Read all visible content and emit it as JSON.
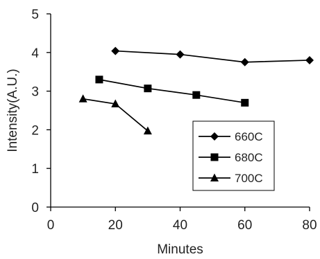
{
  "chart_data": {
    "type": "line",
    "title": "",
    "xlabel": "Minutes",
    "ylabel": "Intensity(A.U.)",
    "xlim": [
      0,
      80
    ],
    "ylim": [
      0,
      5
    ],
    "xticks": [
      "0",
      "20",
      "40",
      "60",
      "80"
    ],
    "yticks": [
      "0",
      "1",
      "2",
      "3",
      "4",
      "5"
    ],
    "grid": false,
    "legend_position": "bottom-right",
    "series": [
      {
        "name": "660C",
        "marker": "diamond",
        "color": "#000000",
        "x": [
          20,
          40,
          60,
          80
        ],
        "y": [
          4.04,
          3.95,
          3.75,
          3.8
        ]
      },
      {
        "name": "680C",
        "marker": "square",
        "color": "#000000",
        "x": [
          15,
          30,
          45,
          60
        ],
        "y": [
          3.3,
          3.07,
          2.9,
          2.7
        ]
      },
      {
        "name": "700C",
        "marker": "triangle",
        "color": "#000000",
        "x": [
          10,
          20,
          30
        ],
        "y": [
          2.8,
          2.67,
          1.97
        ]
      }
    ]
  }
}
